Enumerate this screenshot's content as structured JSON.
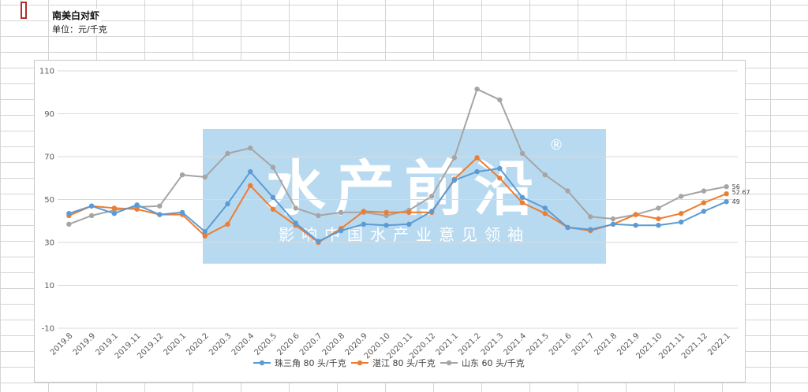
{
  "sheet": {
    "title": "南美白对虾",
    "subtitle": "单位：元/千克"
  },
  "watermark": {
    "main": "水产前沿",
    "registered": "®",
    "slogan": "影响中国水产业意见领袖"
  },
  "chart_data": {
    "type": "line",
    "title": "",
    "xlabel": "",
    "ylabel": "",
    "ylim": [
      -10,
      110
    ],
    "yticks": [
      -10,
      10,
      30,
      50,
      70,
      90,
      110
    ],
    "grid": "horizontal",
    "legend_position": "bottom",
    "categories": [
      "2019.8",
      "2019.9",
      "2019.1",
      "2019.11",
      "2019.12",
      "2020.1",
      "2020.2",
      "2020.3",
      "2020.4",
      "2020.5",
      "2020.6",
      "2020.7",
      "2020.8",
      "2020.9",
      "2020.10",
      "2020.11",
      "2020.12",
      "2021.1",
      "2021.2",
      "2021.3",
      "2021.4",
      "2021.5",
      "2021.6",
      "2021.7",
      "2021.8",
      "2021.9",
      "2021.10",
      "2021.11",
      "2021.12",
      "2022.1"
    ],
    "series": [
      {
        "name": "珠三角 80 头/千克",
        "color": "#5b9bd5",
        "values": [
          43.5,
          47,
          43.5,
          47.5,
          43,
          44,
          35,
          48,
          63,
          51,
          39,
          30.5,
          35.5,
          38.5,
          38,
          38.5,
          44.5,
          59,
          63,
          64.5,
          51,
          46,
          37,
          36,
          38.5,
          38,
          38,
          39.5,
          44.5,
          49
        ]
      },
      {
        "name": "湛江 80 头/千克",
        "color": "#ed7d31",
        "values": [
          42.5,
          47,
          46,
          45.5,
          43,
          43,
          33,
          38.5,
          56.5,
          45.5,
          38,
          30,
          36.5,
          44.5,
          44,
          44,
          44,
          59.5,
          69.5,
          60,
          48.5,
          43.5,
          37,
          35.5,
          38.5,
          43,
          41,
          43.5,
          48.5,
          52.67
        ]
      },
      {
        "name": "山东 60 头/千克",
        "color": "#a5a5a5",
        "values": [
          38.5,
          42.5,
          45,
          46.5,
          47,
          61.5,
          60.5,
          71.5,
          74,
          65,
          46,
          42.5,
          44,
          44,
          42.5,
          45,
          51.5,
          69.5,
          101.5,
          96.5,
          71.5,
          61.5,
          54,
          42,
          41,
          43,
          46,
          51.5,
          54,
          56
        ]
      }
    ],
    "end_labels": [
      "49",
      "52.67",
      "56"
    ]
  }
}
